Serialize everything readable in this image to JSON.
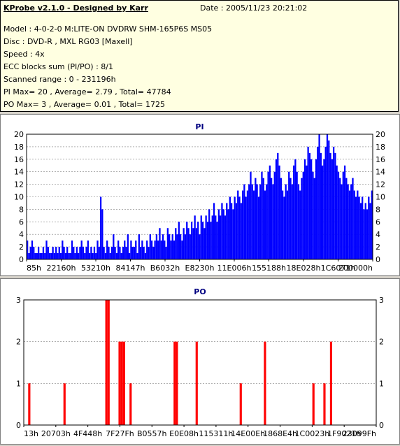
{
  "header": {
    "title": "KProbe v2.1.0 - Designed by Karr",
    "date": "Date : 2005/11/23 20:21:02",
    "lines": [
      "Model : 4-0-2-0 M:LITE-ON DVDRW SHM-165P6S MS05",
      "Disc : DVD-R , MXL RG03 [Maxell]",
      "Speed : 4x",
      "ECC blocks sum (PI/PO) : 8/1",
      "Scanned range : 0 - 231196h",
      "PI Max= 20 , Average= 2.79 , Total= 47784",
      "PO Max= 3 , Average= 0.01 , Total= 1725"
    ]
  },
  "chart_data": [
    {
      "type": "bar",
      "title": "PI",
      "color": "#0000ff",
      "ylim": [
        0,
        20
      ],
      "yticks": [
        0,
        2,
        4,
        6,
        8,
        10,
        12,
        14,
        16,
        18,
        20
      ],
      "xtick_labels": [
        "85h",
        "22160h",
        "53210h",
        "84147h",
        "B6032h",
        "E8230h",
        "11E006h",
        "155188h",
        "18E028h",
        "1C6071h",
        "200000h"
      ],
      "grid": true,
      "series": [
        {
          "values": [
            3,
            1,
            2,
            3,
            2,
            1,
            1,
            2,
            1,
            1,
            2,
            1,
            3,
            2,
            1,
            1,
            2,
            1,
            2,
            1,
            2,
            1,
            3,
            2,
            1,
            2,
            1,
            1,
            3,
            2,
            1,
            2,
            1,
            2,
            3,
            2,
            1,
            2,
            3,
            1,
            2,
            1,
            2,
            1,
            3,
            2,
            10,
            8,
            2,
            1,
            3,
            2,
            1,
            2,
            4,
            2,
            1,
            3,
            2,
            1,
            2,
            3,
            2,
            4,
            1,
            3,
            2,
            2,
            3,
            1,
            4,
            2,
            3,
            2,
            1,
            3,
            2,
            4,
            3,
            2,
            3,
            4,
            3,
            5,
            3,
            4,
            3,
            2,
            5,
            4,
            3,
            4,
            3,
            5,
            4,
            6,
            4,
            3,
            5,
            4,
            6,
            5,
            4,
            6,
            5,
            7,
            5,
            6,
            4,
            7,
            6,
            5,
            7,
            6,
            8,
            6,
            7,
            9,
            7,
            6,
            8,
            7,
            9,
            8,
            7,
            9,
            8,
            10,
            9,
            8,
            10,
            9,
            11,
            10,
            9,
            11,
            12,
            10,
            11,
            12,
            14,
            12,
            11,
            13,
            12,
            10,
            12,
            14,
            13,
            11,
            12,
            14,
            15,
            13,
            12,
            14,
            16,
            17,
            15,
            13,
            11,
            10,
            12,
            11,
            14,
            13,
            12,
            15,
            16,
            14,
            12,
            11,
            13,
            14,
            16,
            15,
            18,
            17,
            16,
            14,
            13,
            16,
            18,
            20,
            17,
            15,
            16,
            18,
            20,
            19,
            17,
            16,
            18,
            17,
            15,
            14,
            13,
            12,
            14,
            15,
            13,
            12,
            11,
            12,
            13,
            11,
            10,
            11,
            10,
            9,
            10,
            8,
            9,
            8,
            10,
            9,
            11
          ]
        }
      ]
    },
    {
      "type": "bar",
      "title": "PO",
      "color": "#ff0000",
      "ylim": [
        0,
        3
      ],
      "yticks": [
        0,
        1,
        2,
        3
      ],
      "xtick_labels": [
        "13h",
        "20703h",
        "4F448h",
        "7F27Fh",
        "B0557h",
        "E0E08h",
        "115311h",
        "14E00Eh",
        "1868E4h",
        "1C0023h",
        "1F9021h",
        "23099Fh"
      ],
      "grid": true,
      "series": [
        {
          "values": [
            0,
            0,
            1,
            0,
            0,
            0,
            0,
            0,
            0,
            0,
            0,
            0,
            0,
            0,
            0,
            0,
            0,
            0,
            1,
            0,
            0,
            0,
            0,
            0,
            0,
            0,
            0,
            0,
            0,
            0,
            0,
            0,
            0,
            0,
            0,
            0,
            0,
            3,
            3,
            0,
            0,
            0,
            0,
            2,
            2,
            2,
            0,
            0,
            1,
            0,
            0,
            0,
            0,
            0,
            0,
            0,
            0,
            0,
            0,
            0,
            0,
            0,
            0,
            0,
            0,
            0,
            0,
            0,
            2,
            2,
            0,
            0,
            0,
            0,
            0,
            0,
            0,
            0,
            2,
            0,
            0,
            0,
            0,
            0,
            0,
            0,
            0,
            0,
            0,
            0,
            0,
            0,
            0,
            0,
            0,
            0,
            0,
            0,
            1,
            0,
            0,
            0,
            0,
            0,
            0,
            0,
            0,
            0,
            0,
            2,
            0,
            0,
            0,
            0,
            0,
            0,
            0,
            0,
            0,
            0,
            0,
            0,
            0,
            0,
            0,
            0,
            0,
            0,
            0,
            0,
            0,
            1,
            0,
            0,
            0,
            0,
            1,
            0,
            0,
            2,
            0,
            0,
            0,
            0,
            0,
            0,
            0,
            0,
            0,
            0,
            0,
            0,
            0,
            0,
            0,
            0,
            0,
            0,
            0,
            0
          ]
        }
      ]
    }
  ]
}
